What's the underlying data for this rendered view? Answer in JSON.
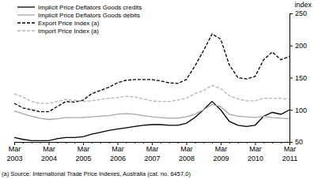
{
  "chart_data": {
    "type": "line",
    "ylabel": "index",
    "annotations": [
      "(a) Source: International Trade Price Indexes, Australia (cat. no. 6457.0)"
    ],
    "categories": [
      "Mar 2003",
      null,
      null,
      null,
      "Mar 2004",
      null,
      null,
      null,
      "Mar 2005",
      null,
      null,
      null,
      "Mar 2006",
      null,
      null,
      null,
      "Mar 2007",
      null,
      null,
      null,
      "Mar 2008",
      null,
      null,
      null,
      "Mar 2009",
      null,
      null,
      null,
      "Mar 2010",
      null,
      null,
      null,
      "Mar 2011"
    ],
    "series": [
      {
        "name": "Implicit Price Deflators Goods credits",
        "color": "#000000",
        "line_style": "solid",
        "values": [
          57,
          54,
          52,
          52,
          52,
          55,
          57,
          57,
          58,
          62,
          65,
          68,
          70,
          72,
          74,
          76,
          77,
          77,
          76,
          76,
          79,
          88,
          100,
          113,
          100,
          82,
          76,
          74,
          76,
          90,
          96,
          93,
          100
        ]
      },
      {
        "name": "Implicit Price Deflators Goods debits",
        "color": "#a6a6a6",
        "line_style": "solid",
        "values": [
          98,
          94,
          90,
          87,
          85,
          86,
          88,
          88,
          88,
          89,
          90,
          91,
          93,
          94,
          93,
          91,
          89,
          88,
          87,
          87,
          89,
          93,
          100,
          108,
          105,
          93,
          90,
          89,
          88,
          90,
          88,
          87,
          86
        ]
      },
      {
        "name": "Export Price Index (a)",
        "color": "#000000",
        "line_style": "dashed",
        "values": [
          110,
          103,
          100,
          97,
          97,
          105,
          113,
          112,
          115,
          125,
          130,
          135,
          142,
          146,
          147,
          147,
          147,
          145,
          142,
          141,
          147,
          168,
          192,
          218,
          210,
          170,
          150,
          148,
          152,
          178,
          190,
          178,
          183
        ]
      },
      {
        "name": "Import Price Index (a)",
        "color": "#b3b3b3",
        "line_style": "dashed",
        "values": [
          125,
          120,
          113,
          110,
          110,
          113,
          116,
          115,
          113,
          114,
          116,
          118,
          119,
          121,
          120,
          117,
          114,
          113,
          113,
          115,
          118,
          125,
          130,
          138,
          133,
          122,
          117,
          114,
          114,
          118,
          118,
          118,
          116
        ]
      }
    ],
    "ylim": [
      50,
      250
    ],
    "yticks": [
      50,
      100,
      150,
      200,
      250
    ],
    "legend": "top-left",
    "grid": false
  }
}
